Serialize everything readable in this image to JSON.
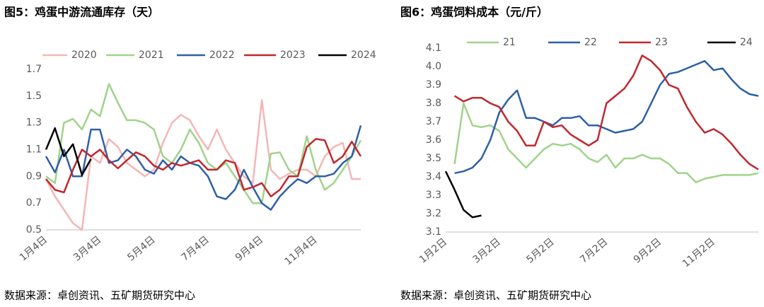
{
  "chart_data": [
    {
      "type": "line",
      "title": "图5：鸡蛋中游流通库存（天）",
      "source": "数据来源：卓创资讯、五矿期货研究中心",
      "categories": [
        "1月4日",
        null,
        null,
        null,
        null,
        null,
        "3月4日",
        null,
        null,
        null,
        null,
        null,
        "5月4日",
        null,
        null,
        null,
        null,
        null,
        "7月4日",
        null,
        null,
        null,
        null,
        null,
        "9月4日",
        null,
        null,
        null,
        null,
        null,
        "11月4日",
        null,
        null,
        null,
        null,
        null
      ],
      "ylim": [
        0.5,
        1.7
      ],
      "yticks": [
        0.5,
        0.7,
        0.9,
        1.1,
        1.3,
        1.5,
        1.7
      ],
      "series": [
        {
          "name": "2020",
          "color": "#f4b6b6",
          "values": [
            0.88,
            0.75,
            0.65,
            0.55,
            0.5,
            1.05,
            1.0,
            1.18,
            1.12,
            1.0,
            0.95,
            0.9,
            0.95,
            1.15,
            1.3,
            1.36,
            1.32,
            1.2,
            1.1,
            1.25,
            1.1,
            1.0,
            0.9,
            0.85,
            1.47,
            0.95,
            0.88,
            0.92,
            0.95,
            0.95,
            0.9,
            1.05,
            1.12,
            1.15,
            0.88,
            0.88
          ]
        },
        {
          "name": "2021",
          "color": "#9fd38a",
          "values": [
            0.9,
            0.85,
            1.3,
            1.33,
            1.25,
            1.4,
            1.35,
            1.59,
            1.45,
            1.32,
            1.32,
            1.3,
            1.25,
            1.05,
            1.0,
            1.1,
            1.25,
            1.15,
            1.0,
            0.95,
            1.0,
            0.9,
            0.8,
            0.7,
            0.7,
            1.07,
            1.08,
            0.95,
            0.9,
            1.2,
            0.95,
            0.8,
            0.85,
            0.95,
            1.05,
            1.17
          ]
        },
        {
          "name": "2022",
          "color": "#2e5fa8",
          "values": [
            1.05,
            0.93,
            1.1,
            0.9,
            0.9,
            1.25,
            1.25,
            1.0,
            1.02,
            1.1,
            1.05,
            0.95,
            0.92,
            1.02,
            0.95,
            1.05,
            1.0,
            0.98,
            0.9,
            0.75,
            0.73,
            0.8,
            0.95,
            0.82,
            0.7,
            0.65,
            0.75,
            0.82,
            0.88,
            0.85,
            0.9,
            0.9,
            0.92,
            1.0,
            1.05,
            1.28
          ]
        },
        {
          "name": "2023",
          "color": "#c0282e",
          "values": [
            0.88,
            0.8,
            0.78,
            0.95,
            1.1,
            1.05,
            1.1,
            1.02,
            0.96,
            1.02,
            1.08,
            1.05,
            0.98,
            0.95,
            1.0,
            0.98,
            1.0,
            1.02,
            0.95,
            0.95,
            1.02,
            1.0,
            0.8,
            0.82,
            0.85,
            0.75,
            0.8,
            0.9,
            0.9,
            1.12,
            1.18,
            1.17,
            1.0,
            1.05,
            1.16,
            1.05
          ]
        },
        {
          "name": "2024",
          "color": "#000000",
          "values": [
            1.1,
            1.26,
            1.05,
            1.14,
            0.91,
            1.03,
            null,
            null,
            null,
            null,
            null,
            null,
            null,
            null,
            null,
            null,
            null,
            null,
            null,
            null,
            null,
            null,
            null,
            null,
            null,
            null,
            null,
            null,
            null,
            null,
            null,
            null,
            null,
            null,
            null,
            null
          ]
        }
      ]
    },
    {
      "type": "line",
      "title": "图6：鸡蛋饲料成本（元/斤）",
      "source": "数据来源：卓创资讯、五矿期货研究中心",
      "categories": [
        "1月2日",
        null,
        null,
        null,
        null,
        null,
        "3月2日",
        null,
        null,
        null,
        null,
        null,
        "5月2日",
        null,
        null,
        null,
        null,
        null,
        "7月2日",
        null,
        null,
        null,
        null,
        null,
        "9月2日",
        null,
        null,
        null,
        null,
        null,
        "11月2日",
        null,
        null,
        null,
        null,
        null
      ],
      "ylim": [
        3.1,
        4.1
      ],
      "yticks": [
        3.1,
        3.2,
        3.3,
        3.4,
        3.5,
        3.6,
        3.7,
        3.8,
        3.9,
        {
          "value": 4,
          "label": "4.0"
        },
        4.1
      ],
      "series": [
        {
          "name": "21",
          "color": "#9fd38a",
          "values": [
            null,
            3.47,
            3.8,
            3.68,
            3.67,
            3.68,
            3.65,
            3.55,
            3.5,
            3.45,
            3.5,
            3.55,
            3.58,
            3.57,
            3.58,
            3.55,
            3.5,
            3.48,
            3.52,
            3.45,
            3.5,
            3.5,
            3.52,
            3.5,
            3.5,
            3.47,
            3.42,
            3.42,
            3.37,
            3.39,
            3.4,
            3.41,
            3.41,
            3.41,
            3.41,
            3.42
          ]
        },
        {
          "name": "22",
          "color": "#2e5fa8",
          "values": [
            null,
            3.42,
            3.43,
            3.45,
            3.5,
            3.6,
            3.75,
            3.82,
            3.87,
            3.72,
            3.72,
            3.7,
            3.68,
            3.72,
            3.72,
            3.73,
            3.68,
            3.68,
            3.66,
            3.64,
            3.65,
            3.66,
            3.7,
            3.8,
            3.9,
            3.96,
            3.97,
            3.99,
            4.01,
            4.03,
            3.98,
            3.99,
            3.93,
            3.88,
            3.85,
            3.84
          ]
        },
        {
          "name": "23",
          "color": "#c0282e",
          "values": [
            null,
            3.84,
            3.81,
            3.83,
            3.83,
            3.8,
            3.78,
            3.7,
            3.65,
            3.57,
            3.57,
            3.7,
            3.67,
            3.68,
            3.63,
            3.6,
            3.57,
            3.6,
            3.8,
            3.84,
            3.88,
            3.95,
            4.06,
            4.03,
            3.98,
            3.9,
            3.88,
            3.78,
            3.7,
            3.64,
            3.66,
            3.63,
            3.58,
            3.52,
            3.47,
            3.44
          ]
        },
        {
          "name": "24",
          "color": "#000000",
          "values": [
            3.43,
            3.33,
            3.22,
            3.18,
            3.19,
            null,
            null,
            null,
            null,
            null,
            null,
            null,
            null,
            null,
            null,
            null,
            null,
            null,
            null,
            null,
            null,
            null,
            null,
            null,
            null,
            null,
            null,
            null,
            null,
            null,
            null,
            null,
            null,
            null,
            null,
            null
          ]
        }
      ]
    }
  ]
}
